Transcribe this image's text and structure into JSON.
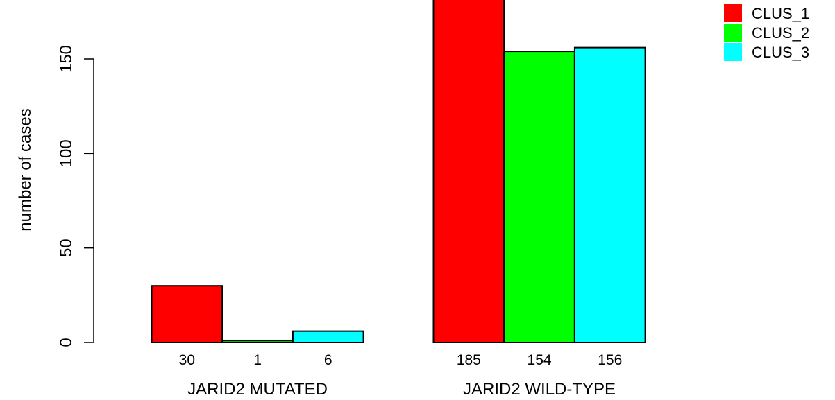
{
  "chart_data": {
    "type": "bar",
    "ylabel": "number of cases",
    "ylim": [
      0,
      185
    ],
    "yticks": [
      0,
      50,
      100,
      150
    ],
    "legend_position": "top-right",
    "groups": [
      {
        "label": "JARID2 MUTATED",
        "values": [
          30,
          1,
          6
        ],
        "value_labels": [
          "30",
          "1",
          "6"
        ]
      },
      {
        "label": "JARID2 WILD-TYPE",
        "values": [
          185,
          154,
          156
        ],
        "value_labels": [
          "185",
          "154",
          "156"
        ]
      }
    ],
    "series": [
      {
        "name": "CLUS_1",
        "color": "#ff0000"
      },
      {
        "name": "CLUS_2",
        "color": "#00ff00"
      },
      {
        "name": "CLUS_3",
        "color": "#00ffff"
      }
    ]
  }
}
